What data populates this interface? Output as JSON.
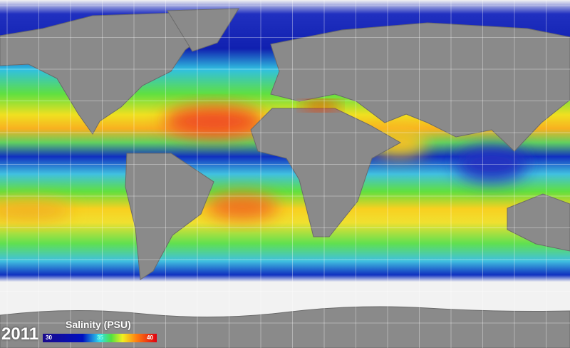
{
  "year": "2011",
  "legend": {
    "title": "Salinity (PSU)",
    "min_label": "30",
    "mid_label": "35",
    "max_label": "40",
    "colors": [
      "#1a0a8c",
      "#0010c0",
      "#30e0f0",
      "#50e040",
      "#f0f020",
      "#ff8010",
      "#e00010"
    ]
  },
  "map": {
    "land_color": "#8a8a8a",
    "ice_color": "#f2f2f2"
  }
}
